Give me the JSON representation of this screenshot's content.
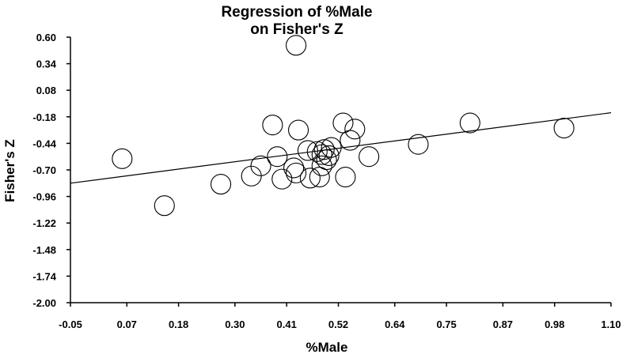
{
  "chart_data": {
    "type": "scatter",
    "title": [
      "Regression of %Male",
      "on Fisher's Z"
    ],
    "xlabel": "%Male",
    "ylabel": "Fisher's Z",
    "xlim": [
      -0.05,
      1.1
    ],
    "ylim": [
      -2.0,
      0.6
    ],
    "x_ticks": [
      -0.05,
      0.07,
      0.18,
      0.3,
      0.41,
      0.52,
      0.64,
      0.75,
      0.87,
      0.98,
      1.1
    ],
    "x_tick_labels": [
      "-0.05",
      "0.07",
      "0.18",
      "0.30",
      "0.41",
      "0.52",
      "0.64",
      "0.75",
      "0.87",
      "0.98",
      "1.10"
    ],
    "y_ticks": [
      0.6,
      0.34,
      0.08,
      -0.18,
      -0.44,
      -0.7,
      -0.96,
      -1.22,
      -1.48,
      -1.74,
      -2.0
    ],
    "y_tick_labels": [
      "0.60",
      "0.34",
      "0.08",
      "-0.18",
      "-0.44",
      "-0.70",
      "-0.96",
      "-1.22",
      "-1.48",
      "-1.74",
      "-2.00"
    ],
    "grid": false,
    "regression_line": {
      "x": [
        -0.05,
        1.1
      ],
      "y": [
        -0.83,
        -0.14
      ]
    },
    "points": [
      {
        "x": 0.06,
        "y": -0.59
      },
      {
        "x": 0.15,
        "y": -1.05
      },
      {
        "x": 0.27,
        "y": -0.84
      },
      {
        "x": 0.335,
        "y": -0.76
      },
      {
        "x": 0.355,
        "y": -0.66
      },
      {
        "x": 0.38,
        "y": -0.26
      },
      {
        "x": 0.39,
        "y": -0.57
      },
      {
        "x": 0.4,
        "y": -0.79
      },
      {
        "x": 0.425,
        "y": -0.68
      },
      {
        "x": 0.43,
        "y": -0.73
      },
      {
        "x": 0.43,
        "y": 0.52
      },
      {
        "x": 0.435,
        "y": -0.31
      },
      {
        "x": 0.455,
        "y": -0.51
      },
      {
        "x": 0.46,
        "y": -0.78
      },
      {
        "x": 0.475,
        "y": -0.52
      },
      {
        "x": 0.48,
        "y": -0.77
      },
      {
        "x": 0.485,
        "y": -0.55
      },
      {
        "x": 0.485,
        "y": -0.66
      },
      {
        "x": 0.49,
        "y": -0.5
      },
      {
        "x": 0.495,
        "y": -0.6
      },
      {
        "x": 0.5,
        "y": -0.56
      },
      {
        "x": 0.505,
        "y": -0.48
      },
      {
        "x": 0.53,
        "y": -0.24
      },
      {
        "x": 0.535,
        "y": -0.77
      },
      {
        "x": 0.545,
        "y": -0.41
      },
      {
        "x": 0.555,
        "y": -0.3
      },
      {
        "x": 0.585,
        "y": -0.57
      },
      {
        "x": 0.69,
        "y": -0.45
      },
      {
        "x": 0.8,
        "y": -0.24
      },
      {
        "x": 1.0,
        "y": -0.29
      }
    ]
  }
}
